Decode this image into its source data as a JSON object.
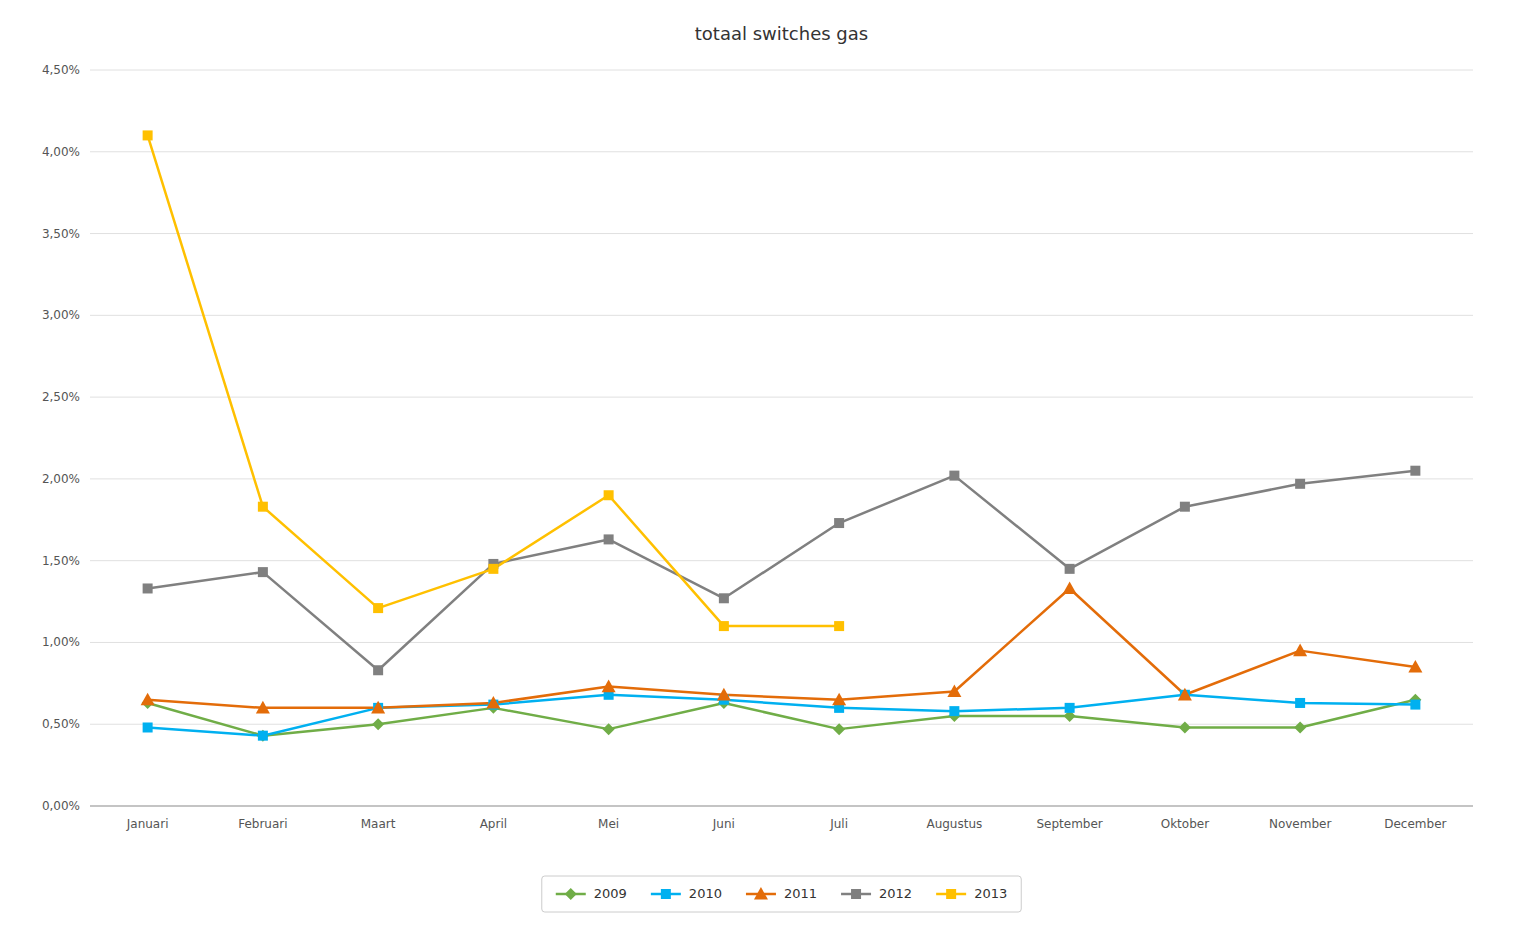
{
  "chart_data": {
    "type": "line",
    "title": "totaal switches gas",
    "categories": [
      "Januari",
      "Februari",
      "Maart",
      "April",
      "Mei",
      "Juni",
      "Juli",
      "Augustus",
      "September",
      "Oktober",
      "November",
      "December"
    ],
    "series": [
      {
        "name": "2009",
        "color": "#70ad47",
        "marker": "diamond",
        "values": [
          0.0063,
          0.0043,
          0.005,
          0.006,
          0.0047,
          0.0063,
          0.0047,
          0.0055,
          0.0055,
          0.0048,
          0.0048,
          0.0065
        ]
      },
      {
        "name": "2010",
        "color": "#00b0f0",
        "marker": "square",
        "values": [
          0.0048,
          0.0043,
          0.006,
          0.0062,
          0.0068,
          0.0065,
          0.006,
          0.0058,
          0.006,
          0.0068,
          0.0063,
          0.0062
        ]
      },
      {
        "name": "2011",
        "color": "#e36c09",
        "marker": "triangle",
        "values": [
          0.0065,
          0.006,
          0.006,
          0.0063,
          0.0073,
          0.0068,
          0.0065,
          0.007,
          0.0133,
          0.0068,
          0.0095,
          0.0085
        ]
      },
      {
        "name": "2012",
        "color": "#808080",
        "marker": "square",
        "values": [
          0.0133,
          0.0143,
          0.0083,
          0.0148,
          0.0163,
          0.0127,
          0.0173,
          0.0202,
          0.0145,
          0.0183,
          0.0197,
          0.0205
        ]
      },
      {
        "name": "2013",
        "color": "#ffc000",
        "marker": "square",
        "values": [
          0.041,
          0.0183,
          0.0121,
          0.0145,
          0.019,
          0.011,
          0.011,
          null,
          null,
          null,
          null,
          null
        ]
      }
    ],
    "ylim": [
      0.0,
      0.045
    ],
    "yticks": [
      {
        "value": 0.0,
        "label": "0,00%"
      },
      {
        "value": 0.005,
        "label": "0,50%"
      },
      {
        "value": 0.01,
        "label": "1,00%"
      },
      {
        "value": 0.015,
        "label": "1,50%"
      },
      {
        "value": 0.02,
        "label": "2,00%"
      },
      {
        "value": 0.025,
        "label": "2,50%"
      },
      {
        "value": 0.03,
        "label": "3,00%"
      },
      {
        "value": 0.035,
        "label": "3,50%"
      },
      {
        "value": 0.04,
        "label": "4,00%"
      },
      {
        "value": 0.045,
        "label": "4,50%"
      }
    ],
    "grid": true,
    "legend": "bottom"
  }
}
